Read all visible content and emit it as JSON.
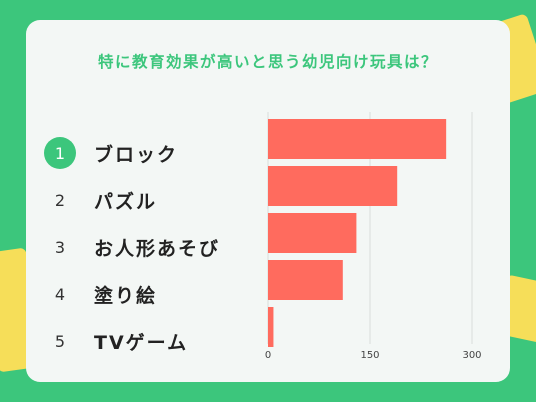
{
  "colors": {
    "background": "#3cc67c",
    "card": "#f3f7f5",
    "bar": "#ff6b5e",
    "accent": "#3cc67c",
    "decor": "#f6de59"
  },
  "chart_data": {
    "type": "bar",
    "orientation": "horizontal",
    "title": "特に教育効果が高いと思う幼児向け玩具は？",
    "xlabel": "",
    "ylabel": "",
    "xlim": [
      0,
      300
    ],
    "xticks": [
      "0",
      "150",
      "300"
    ],
    "grid": true,
    "ranks": [
      "1",
      "2",
      "3",
      "4",
      "5"
    ],
    "categories": [
      "ブロック",
      "パズル",
      "お人形あそび",
      "塗り絵",
      "TVゲーム"
    ],
    "values": [
      262,
      190,
      130,
      110,
      8
    ]
  }
}
